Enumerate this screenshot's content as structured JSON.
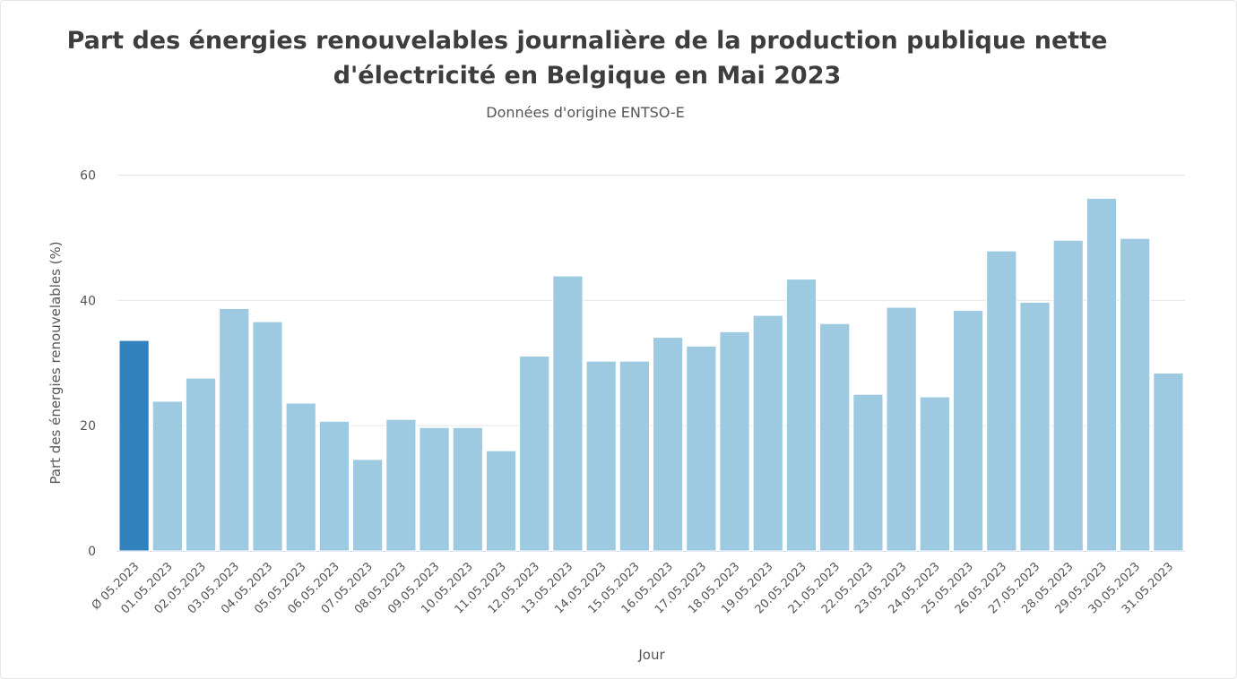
{
  "chart_data": {
    "type": "bar",
    "title_line1": "Part des énergies renouvelables journalière de la production publique nette",
    "title_line2": "d'électricité en Belgique en Mai 2023",
    "subtitle": "Données d'origine ENTSO-E",
    "xlabel": "Jour",
    "ylabel": "Part des énergies renouvelables (%)",
    "ylim": [
      0,
      60
    ],
    "yticks": [
      0,
      20,
      40,
      60
    ],
    "grid": true,
    "legend": "none",
    "categories": [
      "Ø 05.2023",
      "01.05.2023",
      "02.05.2023",
      "03.05.2023",
      "04.05.2023",
      "05.05.2023",
      "06.05.2023",
      "07.05.2023",
      "08.05.2023",
      "09.05.2023",
      "10.05.2023",
      "11.05.2023",
      "12.05.2023",
      "13.05.2023",
      "14.05.2023",
      "15.05.2023",
      "16.05.2023",
      "17.05.2023",
      "18.05.2023",
      "19.05.2023",
      "20.05.2023",
      "21.05.2023",
      "22.05.2023",
      "23.05.2023",
      "24.05.2023",
      "25.05.2023",
      "26.05.2023",
      "27.05.2023",
      "28.05.2023",
      "29.05.2023",
      "30.05.2023",
      "31.05.2023"
    ],
    "values": [
      33.6,
      23.9,
      27.6,
      38.7,
      36.6,
      23.6,
      20.7,
      14.6,
      21.0,
      19.7,
      19.7,
      16.0,
      31.1,
      43.9,
      30.3,
      30.3,
      34.1,
      32.7,
      35.0,
      37.6,
      43.4,
      36.3,
      25.0,
      38.9,
      24.6,
      38.4,
      47.9,
      39.7,
      49.6,
      56.3,
      49.9,
      28.4
    ],
    "colors": {
      "average": "#3182bd",
      "daily": "#9ecae1",
      "grid": "#e6e6e6",
      "axis": "#ccd6eb"
    }
  }
}
